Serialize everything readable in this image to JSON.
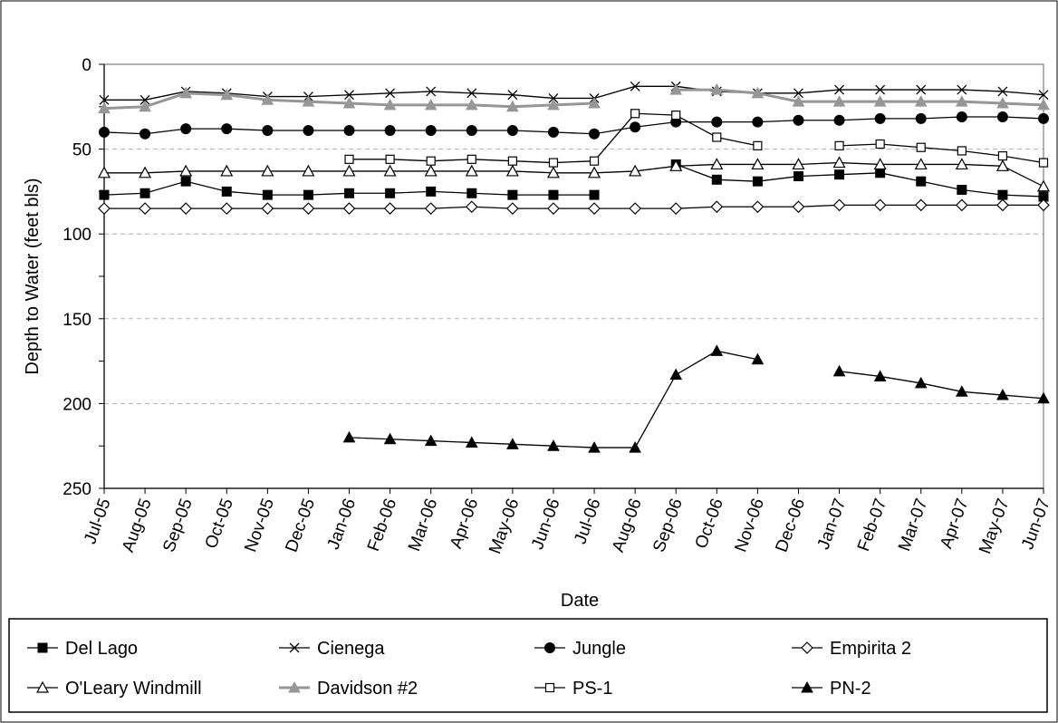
{
  "chart_data": {
    "type": "line",
    "title": "",
    "xlabel": "Date",
    "ylabel": "Depth to Water (feet bls)",
    "ylim": [
      0,
      250
    ],
    "y_reversed": true,
    "y_ticks": [
      0,
      50,
      100,
      150,
      200,
      250
    ],
    "grid": "horizontal dashed",
    "legend_position": "bottom",
    "categories": [
      "Jul-05",
      "Aug-05",
      "Sep-05",
      "Oct-05",
      "Nov-05",
      "Dec-05",
      "Jan-06",
      "Feb-06",
      "Mar-06",
      "Apr-06",
      "May-06",
      "Jun-06",
      "Jul-06",
      "Aug-06",
      "Sep-06",
      "Oct-06",
      "Nov-06",
      "Dec-06",
      "Jan-07",
      "Feb-07",
      "Mar-07",
      "Apr-07",
      "May-07",
      "Jun-07"
    ],
    "series": [
      {
        "name": "Del Lago",
        "marker": "square-filled",
        "color": "#000000",
        "values": [
          77,
          76,
          69,
          75,
          77,
          77,
          76,
          76,
          75,
          76,
          77,
          77,
          77,
          null,
          59,
          68,
          69,
          66,
          65,
          64,
          69,
          74,
          77,
          78
        ]
      },
      {
        "name": "Cienega",
        "marker": "x",
        "color": "#000000",
        "values": [
          21,
          21,
          16,
          17,
          19,
          19,
          18,
          17,
          16,
          17,
          18,
          20,
          20,
          13,
          13,
          16,
          17,
          17,
          15,
          15,
          15,
          15,
          16,
          18
        ]
      },
      {
        "name": "Jungle",
        "marker": "circle-filled",
        "color": "#000000",
        "values": [
          40,
          41,
          38,
          38,
          39,
          39,
          39,
          39,
          39,
          39,
          39,
          40,
          41,
          37,
          34,
          34,
          34,
          33,
          33,
          32,
          32,
          31,
          31,
          32
        ]
      },
      {
        "name": "Empirita 2",
        "marker": "diamond-open",
        "color": "#000000",
        "values": [
          85,
          85,
          85,
          85,
          85,
          85,
          85,
          85,
          85,
          84,
          85,
          85,
          85,
          85,
          85,
          84,
          84,
          84,
          83,
          83,
          83,
          83,
          83,
          83
        ]
      },
      {
        "name": "O'Leary Windmill",
        "marker": "triangle-open",
        "color": "#000000",
        "values": [
          64,
          64,
          63,
          63,
          63,
          63,
          63,
          63,
          63,
          63,
          63,
          64,
          64,
          63,
          60,
          59,
          59,
          59,
          58,
          59,
          59,
          59,
          60,
          72
        ]
      },
      {
        "name": "Davidson #2",
        "marker": "triangle-filled",
        "color": "#969696",
        "values": [
          26,
          25,
          17,
          18,
          21,
          22,
          23,
          24,
          24,
          24,
          25,
          24,
          23,
          null,
          15,
          15,
          17,
          22,
          22,
          22,
          22,
          22,
          23,
          24
        ]
      },
      {
        "name": "PS-1",
        "marker": "square-open",
        "color": "#000000",
        "values": [
          null,
          null,
          null,
          null,
          null,
          null,
          56,
          56,
          57,
          56,
          57,
          58,
          57,
          29,
          30,
          43,
          48,
          null,
          48,
          47,
          49,
          51,
          54,
          58
        ]
      },
      {
        "name": "PN-2",
        "marker": "triangle-filled",
        "color": "#000000",
        "values": [
          null,
          null,
          null,
          null,
          null,
          null,
          220,
          221,
          222,
          223,
          224,
          225,
          226,
          226,
          183,
          169,
          174,
          null,
          181,
          184,
          188,
          193,
          195,
          197
        ]
      }
    ]
  }
}
